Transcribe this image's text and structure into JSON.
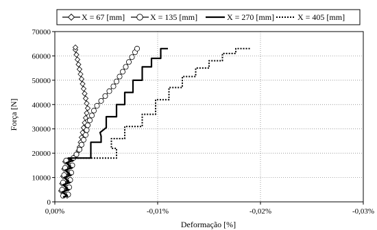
{
  "chart_data": {
    "type": "line",
    "xlabel": "Deformação  [%]",
    "ylabel": "Força  [N]",
    "xlim": [
      0.0,
      -0.03
    ],
    "ylim": [
      0,
      70000
    ],
    "x_ticks": [
      0.0,
      -0.01,
      -0.02,
      -0.03
    ],
    "x_tick_labels": [
      "0,00%",
      "-0,01%",
      "-0,02%",
      "-0,03%"
    ],
    "y_ticks": [
      0,
      10000,
      20000,
      30000,
      40000,
      50000,
      60000,
      70000
    ],
    "y_tick_labels": [
      "0",
      "10000",
      "20000",
      "30000",
      "40000",
      "50000",
      "60000",
      "70000"
    ],
    "grid": "major, dotted",
    "legend_position": "top",
    "series": [
      {
        "name": "X = 67 [mm]",
        "style": "line-diamond-markers",
        "points": [
          [
            -0.0008,
            2500
          ],
          [
            -0.0012,
            2500
          ],
          [
            -0.0006,
            4500
          ],
          [
            -0.0013,
            5500
          ],
          [
            -0.0007,
            7500
          ],
          [
            -0.0014,
            8500
          ],
          [
            -0.0008,
            10500
          ],
          [
            -0.0015,
            11500
          ],
          [
            -0.0009,
            13500
          ],
          [
            -0.0016,
            14500
          ],
          [
            -0.001,
            16500
          ],
          [
            -0.0017,
            17500
          ],
          [
            -0.0019,
            18500
          ],
          [
            -0.0021,
            19500
          ],
          [
            -0.0023,
            21000
          ],
          [
            -0.0024,
            22500
          ],
          [
            -0.0025,
            24500
          ],
          [
            -0.0026,
            26500
          ],
          [
            -0.0027,
            28500
          ],
          [
            -0.0028,
            30500
          ],
          [
            -0.0029,
            32500
          ],
          [
            -0.003,
            34500
          ],
          [
            -0.0031,
            36500
          ],
          [
            -0.0032,
            38500
          ],
          [
            -0.0031,
            40500
          ],
          [
            -0.003,
            42500
          ],
          [
            -0.0029,
            44500
          ],
          [
            -0.0028,
            46500
          ],
          [
            -0.0027,
            48500
          ],
          [
            -0.0026,
            50500
          ],
          [
            -0.0025,
            52500
          ],
          [
            -0.0024,
            54500
          ],
          [
            -0.0023,
            56500
          ],
          [
            -0.0022,
            58500
          ],
          [
            -0.0021,
            60500
          ],
          [
            -0.002,
            62500
          ],
          [
            -0.002,
            63500
          ]
        ]
      },
      {
        "name": "X = 135 [mm]",
        "style": "line-circle-markers",
        "points": [
          [
            -0.0008,
            2500
          ],
          [
            -0.0013,
            3000
          ],
          [
            -0.0007,
            5000
          ],
          [
            -0.0014,
            6000
          ],
          [
            -0.0008,
            8000
          ],
          [
            -0.0015,
            9000
          ],
          [
            -0.0009,
            11000
          ],
          [
            -0.0016,
            12000
          ],
          [
            -0.001,
            14000
          ],
          [
            -0.0017,
            15000
          ],
          [
            -0.0011,
            17000
          ],
          [
            -0.0018,
            18000
          ],
          [
            -0.0021,
            19500
          ],
          [
            -0.0024,
            21500
          ],
          [
            -0.0026,
            23500
          ],
          [
            -0.0028,
            25500
          ],
          [
            -0.003,
            27500
          ],
          [
            -0.0031,
            29500
          ],
          [
            -0.0032,
            31500
          ],
          [
            -0.0034,
            33500
          ],
          [
            -0.0036,
            35500
          ],
          [
            -0.0038,
            37500
          ],
          [
            -0.0041,
            39500
          ],
          [
            -0.0045,
            41500
          ],
          [
            -0.0049,
            43500
          ],
          [
            -0.0053,
            45500
          ],
          [
            -0.0057,
            47500
          ],
          [
            -0.006,
            49500
          ],
          [
            -0.0063,
            51500
          ],
          [
            -0.0066,
            53500
          ],
          [
            -0.0069,
            55500
          ],
          [
            -0.0072,
            57500
          ],
          [
            -0.0075,
            59500
          ],
          [
            -0.0078,
            61500
          ],
          [
            -0.008,
            63000
          ]
        ]
      },
      {
        "name": "X = 270 [mm]",
        "style": "solid-thick",
        "points": [
          [
            -0.0008,
            2000
          ],
          [
            -0.0012,
            2500
          ],
          [
            -0.0007,
            4000
          ],
          [
            -0.0013,
            5000
          ],
          [
            -0.0008,
            7000
          ],
          [
            -0.0014,
            8000
          ],
          [
            -0.0009,
            10000
          ],
          [
            -0.0015,
            11000
          ],
          [
            -0.001,
            13000
          ],
          [
            -0.0016,
            14000
          ],
          [
            -0.0011,
            16000
          ],
          [
            -0.0017,
            17000
          ],
          [
            -0.0013,
            18000
          ],
          [
            -0.0035,
            18000
          ],
          [
            -0.0035,
            24500
          ],
          [
            -0.0045,
            24500
          ],
          [
            -0.0045,
            27000
          ],
          [
            -0.0044,
            28500
          ],
          [
            -0.005,
            30500
          ],
          [
            -0.005,
            35000
          ],
          [
            -0.006,
            35000
          ],
          [
            -0.006,
            40000
          ],
          [
            -0.0068,
            40000
          ],
          [
            -0.0068,
            45000
          ],
          [
            -0.0076,
            45000
          ],
          [
            -0.0076,
            50000
          ],
          [
            -0.0085,
            50000
          ],
          [
            -0.0085,
            55500
          ],
          [
            -0.0094,
            55500
          ],
          [
            -0.0094,
            59000
          ],
          [
            -0.0103,
            59000
          ],
          [
            -0.0103,
            63000
          ],
          [
            -0.011,
            63000
          ]
        ]
      },
      {
        "name": "X = 405 [mm]",
        "style": "dotted-thick",
        "points": [
          [
            -0.0009,
            2000
          ],
          [
            -0.0013,
            2500
          ],
          [
            -0.0008,
            4000
          ],
          [
            -0.0014,
            5000
          ],
          [
            -0.0009,
            7000
          ],
          [
            -0.0015,
            8000
          ],
          [
            -0.001,
            10000
          ],
          [
            -0.0016,
            11000
          ],
          [
            -0.0011,
            13000
          ],
          [
            -0.0017,
            14000
          ],
          [
            -0.0012,
            16000
          ],
          [
            -0.0018,
            17000
          ],
          [
            -0.0014,
            18000
          ],
          [
            -0.006,
            18000
          ],
          [
            -0.006,
            22000
          ],
          [
            -0.0055,
            22000
          ],
          [
            -0.0055,
            26000
          ],
          [
            -0.0068,
            26000
          ],
          [
            -0.0068,
            31000
          ],
          [
            -0.0085,
            31000
          ],
          [
            -0.0085,
            36000
          ],
          [
            -0.0098,
            36000
          ],
          [
            -0.0098,
            42000
          ],
          [
            -0.0111,
            42000
          ],
          [
            -0.0111,
            47000
          ],
          [
            -0.0124,
            47000
          ],
          [
            -0.0124,
            51500
          ],
          [
            -0.0137,
            51500
          ],
          [
            -0.0137,
            55000
          ],
          [
            -0.015,
            55000
          ],
          [
            -0.015,
            58000
          ],
          [
            -0.0163,
            58000
          ],
          [
            -0.0163,
            61000
          ],
          [
            -0.0176,
            61000
          ],
          [
            -0.0176,
            63000
          ],
          [
            -0.019,
            63000
          ]
        ]
      }
    ]
  }
}
